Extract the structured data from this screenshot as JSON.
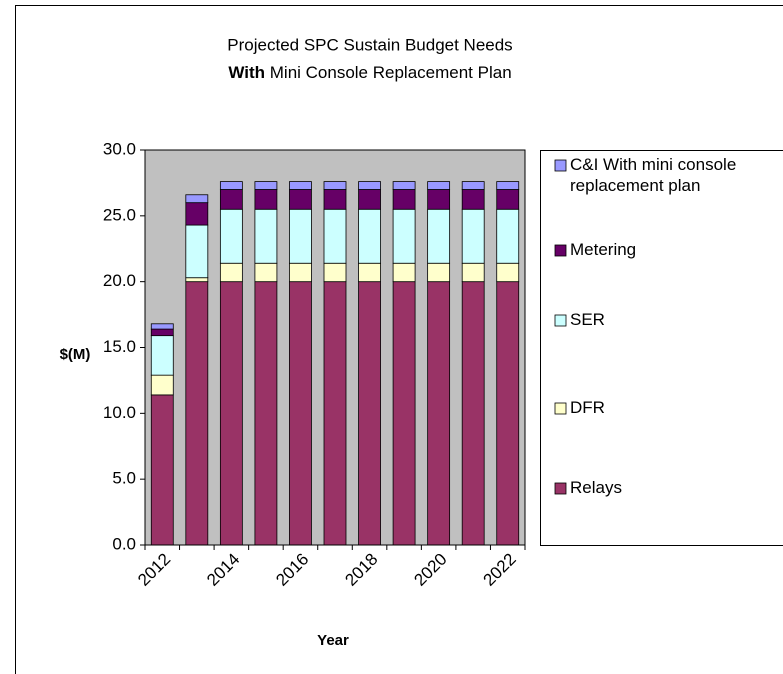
{
  "chart_data": {
    "type": "stacked_bar",
    "title": "Projected SPC Sustain Budget Needs",
    "subtitle_bold": "With",
    "subtitle": "Mini Console Replacement Plan",
    "y_label": "$(M)",
    "x_label": "Year",
    "categories": [
      "2012",
      null,
      "2014",
      null,
      "2016",
      null,
      "2018",
      null,
      "2020",
      null,
      "2022"
    ],
    "series": [
      {
        "name": "Relays",
        "color": "#993366",
        "values": [
          11.4,
          20.0,
          20.0,
          20.0,
          20.0,
          20.0,
          20.0,
          20.0,
          20.0,
          20.0,
          20.0
        ]
      },
      {
        "name": "DFR",
        "color": "#FFFFCC",
        "values": [
          1.5,
          0.3,
          1.4,
          1.4,
          1.4,
          1.4,
          1.4,
          1.4,
          1.4,
          1.4,
          1.4
        ]
      },
      {
        "name": "SER",
        "color": "#CCFFFF",
        "values": [
          3.0,
          4.0,
          4.1,
          4.1,
          4.1,
          4.1,
          4.1,
          4.1,
          4.1,
          4.1,
          4.1
        ]
      },
      {
        "name": "Metering",
        "color": "#660066",
        "values": [
          0.5,
          1.7,
          1.5,
          1.5,
          1.5,
          1.5,
          1.5,
          1.5,
          1.5,
          1.5,
          1.5
        ]
      },
      {
        "name": "C&I With mini console replacement plan",
        "color": "#9999FF",
        "values": [
          0.4,
          0.6,
          0.6,
          0.6,
          0.6,
          0.6,
          0.6,
          0.6,
          0.6,
          0.6,
          0.6
        ]
      }
    ],
    "ylim": [
      0,
      30
    ],
    "yticks": [
      {
        "value": 0,
        "label": "0.0"
      },
      {
        "value": 5,
        "label": "5.0"
      },
      {
        "value": 10,
        "label": "10.0"
      },
      {
        "value": 15,
        "label": "15.0"
      },
      {
        "value": 20,
        "label": "20.0"
      },
      {
        "value": 25,
        "label": "25.0"
      },
      {
        "value": 30,
        "label": "30.0"
      }
    ],
    "plot_background": "#C0C0C0",
    "legend": "right"
  }
}
